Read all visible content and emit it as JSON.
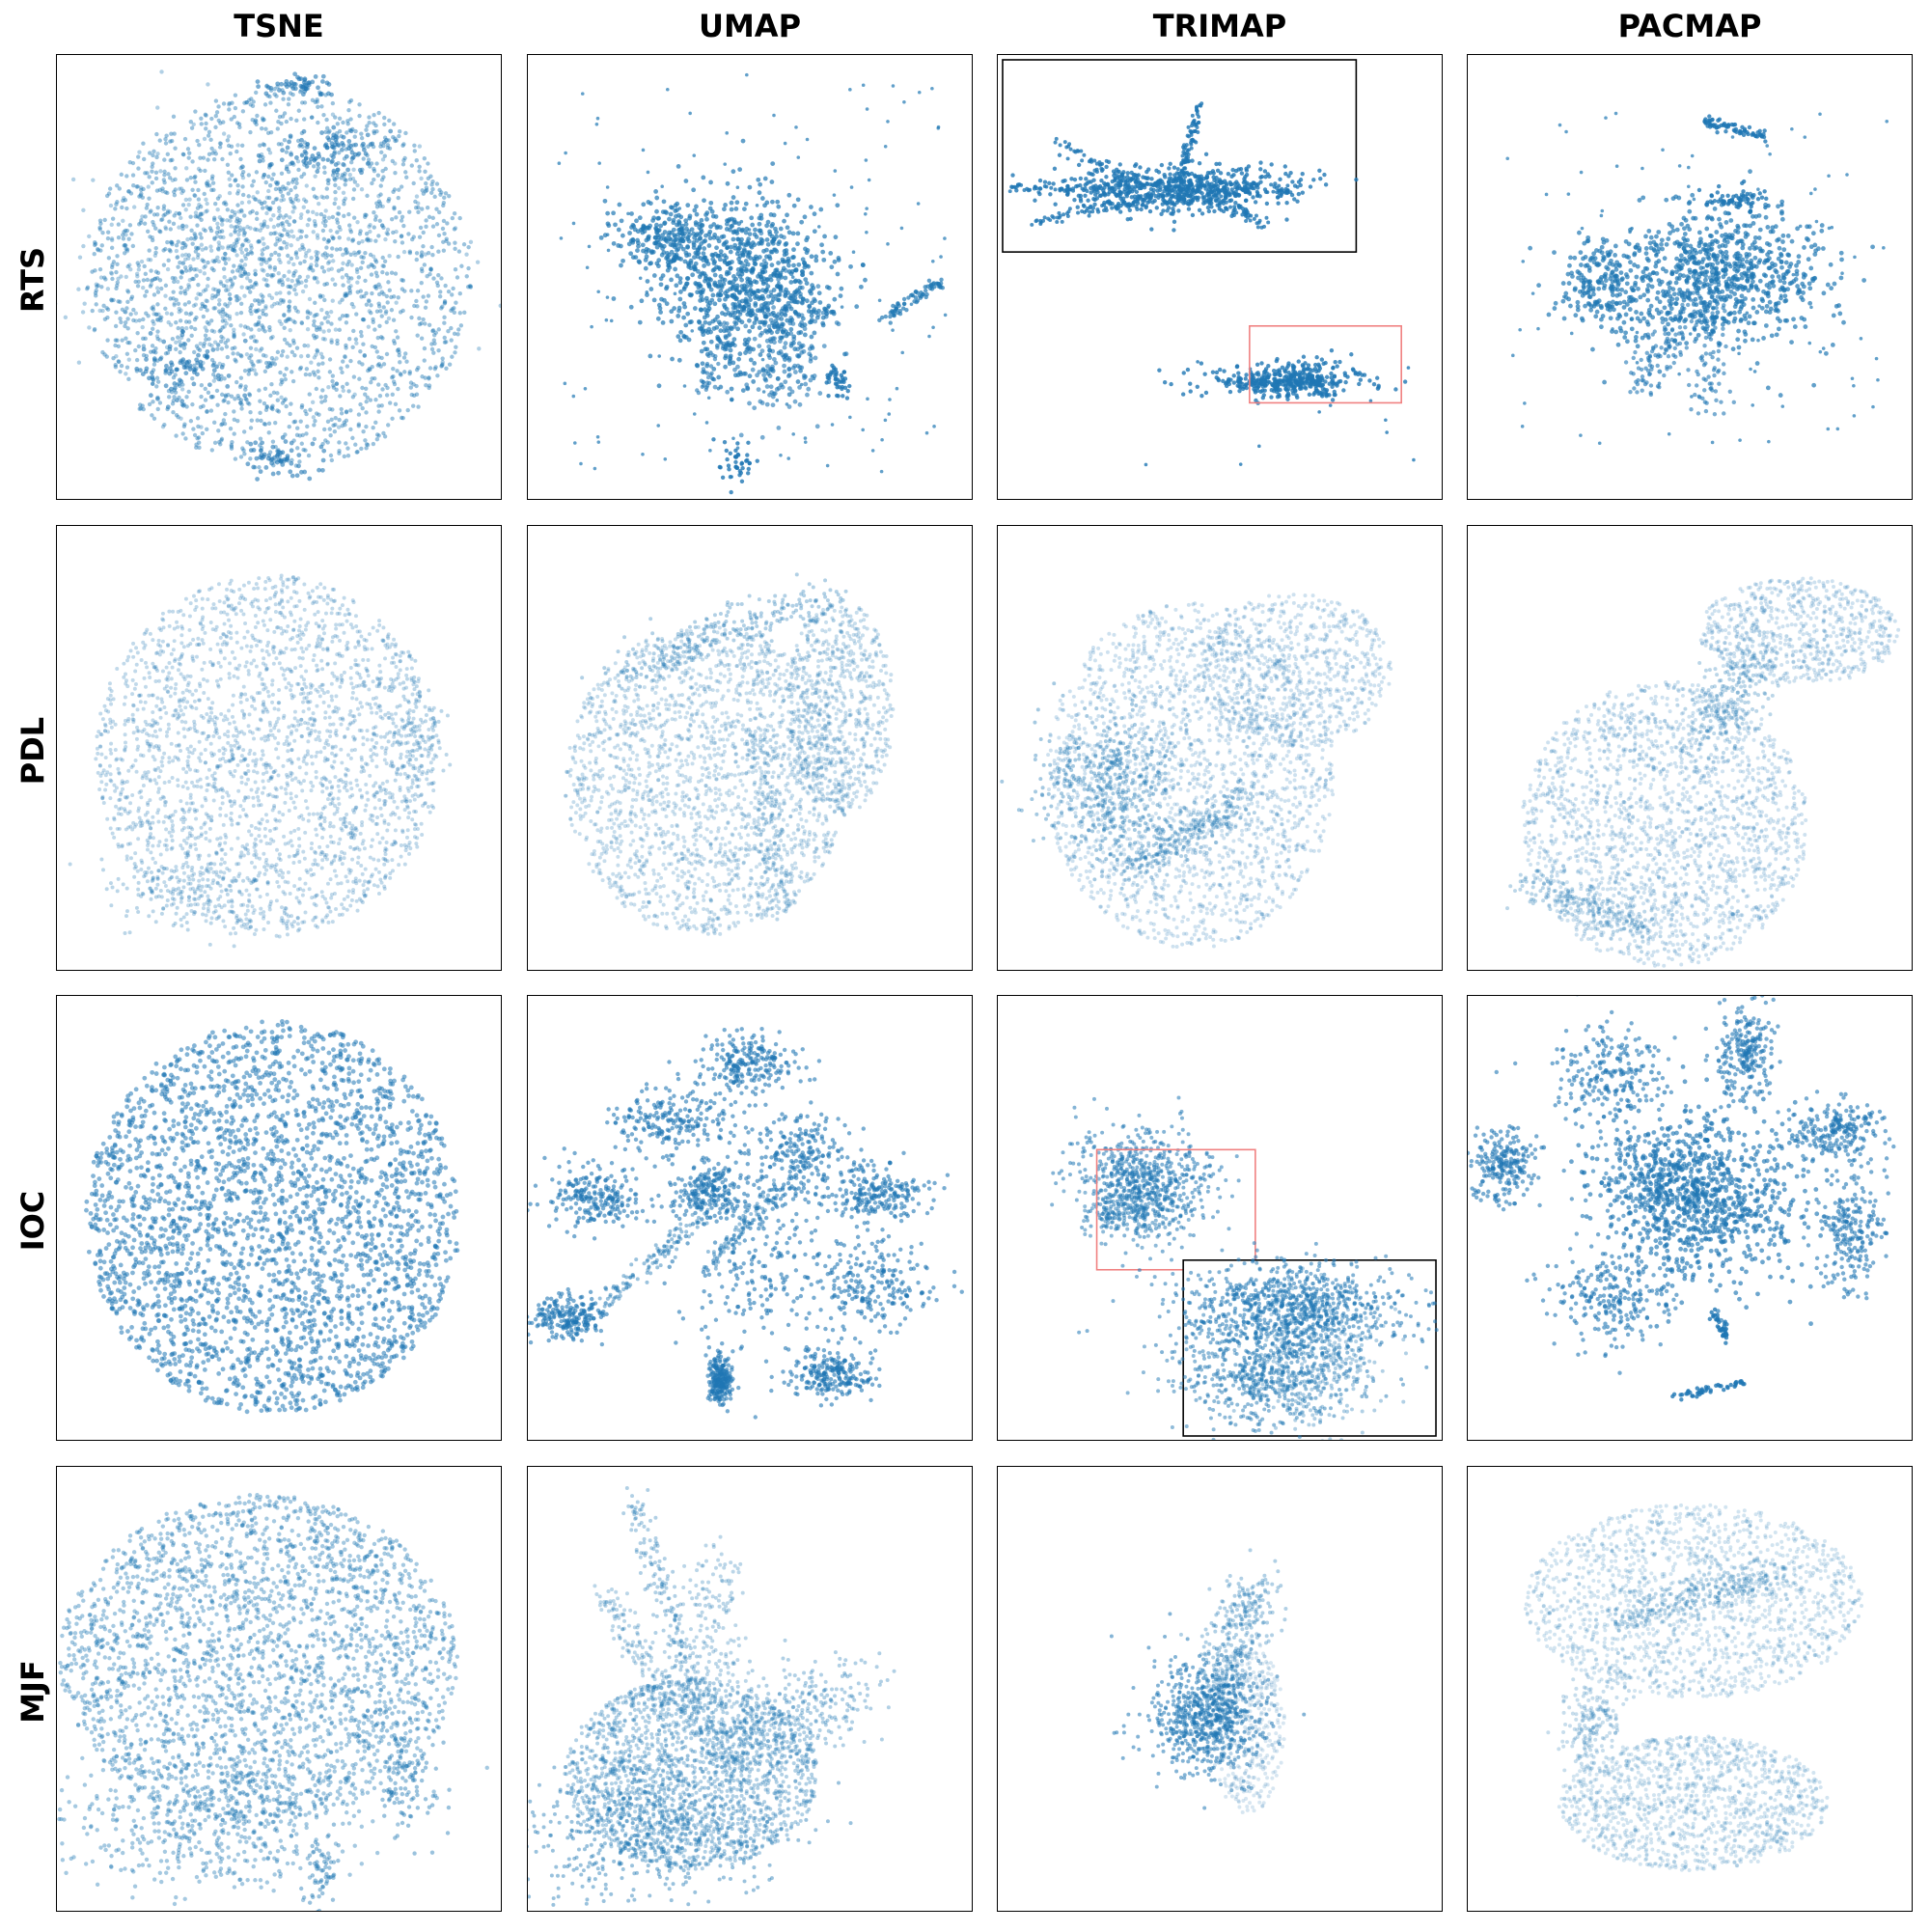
{
  "chart_data": {
    "type": "scatter",
    "columns": [
      "TSNE",
      "UMAP",
      "TRIMAP",
      "PACMAP"
    ],
    "rows": [
      "RTS",
      "PDL",
      "IOC",
      "MJF"
    ],
    "point_color": "#1f77b4",
    "inset_frame_color": "#f08080",
    "axes_ticks": "none",
    "grid": false,
    "legend": "none",
    "insets": [
      {
        "row": "RTS",
        "column": "TRIMAP",
        "zoomed_region_placement": "lower-right",
        "inset_placement": "upper-left"
      },
      {
        "row": "IOC",
        "column": "TRIMAP",
        "zoomed_region_placement": "center-left",
        "inset_placement": "lower-right"
      }
    ]
  }
}
